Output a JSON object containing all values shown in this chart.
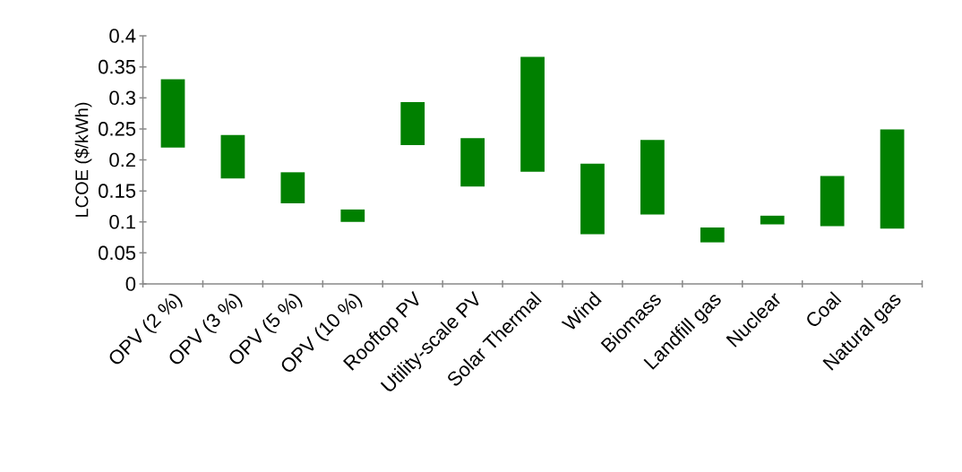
{
  "chart_data": {
    "type": "bar",
    "ylabel": "LCOE ($/kWh)",
    "categories": [
      "OPV (2 %)",
      "OPV (3 %)",
      "OPV (5 %)",
      "OPV (10 %)",
      "Rooftop PV",
      "Utility-scale PV",
      "Solar Thermal",
      "Wind",
      "Biomass",
      "Landfill gas",
      "Nuclear",
      "Coal",
      "Natural gas"
    ],
    "base": [
      0.22,
      0.17,
      0.13,
      0.1,
      0.224,
      0.157,
      0.181,
      0.08,
      0.112,
      0.067,
      0.096,
      0.093,
      0.089
    ],
    "values": [
      0.11,
      0.07,
      0.05,
      0.02,
      0.069,
      0.078,
      0.185,
      0.114,
      0.12,
      0.024,
      0.014,
      0.081,
      0.16
    ],
    "color": "#008000",
    "ylim": [
      0,
      0.4
    ],
    "yticks": [
      0,
      0.05,
      0.1,
      0.15,
      0.2,
      0.25,
      0.3,
      0.35,
      0.4
    ],
    "stacked": false
  }
}
